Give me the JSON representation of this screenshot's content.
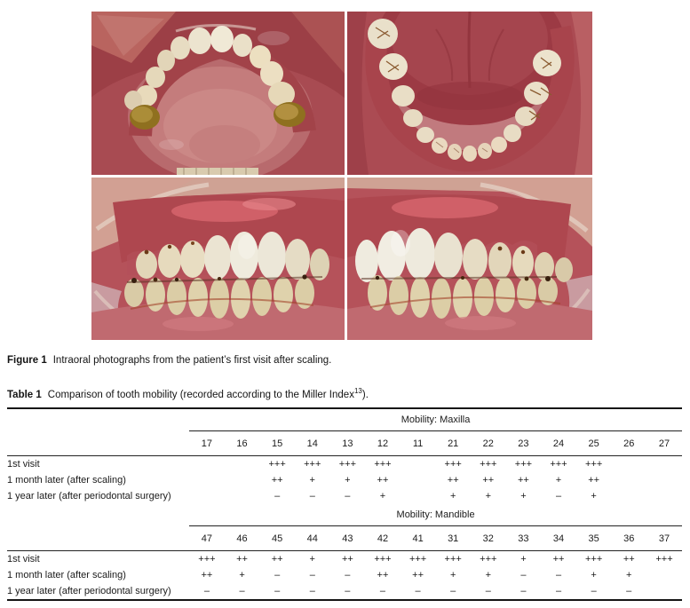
{
  "figure": {
    "caption_label": "Figure 1",
    "caption_text": "Intraoral photographs from the patient’s first visit after scaling.",
    "photos": [
      {
        "name": "maxillary-occlusal-view"
      },
      {
        "name": "mandibular-occlusal-view"
      },
      {
        "name": "right-lateral-view"
      },
      {
        "name": "left-lateral-view"
      }
    ]
  },
  "table": {
    "caption_label": "Table 1",
    "caption_text": "Comparison of tooth mobility (recorded according to the Miller Index",
    "caption_sup": "13",
    "caption_tail": ").",
    "sections": [
      {
        "header": "Mobility: Maxilla",
        "teeth": [
          "17",
          "16",
          "15",
          "14",
          "13",
          "12",
          "11",
          "21",
          "22",
          "23",
          "24",
          "25",
          "26",
          "27"
        ],
        "rows": [
          {
            "label": "1st visit",
            "values": [
              "",
              "",
              "+++",
              "+++",
              "+++",
              "+++",
              "",
              "+++",
              "+++",
              "+++",
              "+++",
              "+++",
              "",
              ""
            ]
          },
          {
            "label": "1 month later (after scaling)",
            "values": [
              "",
              "",
              "++",
              "+",
              "+",
              "++",
              "",
              "++",
              "++",
              "++",
              "+",
              "++",
              "",
              ""
            ]
          },
          {
            "label": "1 year later (after periodontal surgery)",
            "values": [
              "",
              "",
              "–",
              "–",
              "–",
              "+",
              "",
              "+",
              "+",
              "+",
              "–",
              "+",
              "",
              ""
            ]
          }
        ]
      },
      {
        "header": "Mobility: Mandible",
        "teeth": [
          "47",
          "46",
          "45",
          "44",
          "43",
          "42",
          "41",
          "31",
          "32",
          "33",
          "34",
          "35",
          "36",
          "37"
        ],
        "rows": [
          {
            "label": "1st visit",
            "values": [
              "+++",
              "++",
              "++",
              "+",
              "++",
              "+++",
              "+++",
              "+++",
              "+++",
              "+",
              "++",
              "+++",
              "++",
              "+++"
            ]
          },
          {
            "label": "1 month later (after scaling)",
            "values": [
              "++",
              "+",
              "–",
              "–",
              "–",
              "++",
              "++",
              "+",
              "+",
              "–",
              "–",
              "+",
              "+",
              ""
            ]
          },
          {
            "label": "1 year later (after periodontal surgery)",
            "values": [
              "–",
              "–",
              "–",
              "–",
              "–",
              "–",
              "–",
              "–",
              "–",
              "–",
              "–",
              "–",
              "–",
              ""
            ]
          }
        ]
      }
    ]
  },
  "colors": {
    "gum_dark": "#a1424a",
    "gum_bright": "#c0525a",
    "palate": "#c77e7e",
    "tooth_cream": "#eae0c8",
    "tooth_white": "#f0ece0",
    "tooth_yellow": "#dccfa8",
    "gold_crown": "#97752a",
    "tongue": "#9c3942",
    "flesh": "#d4a497"
  }
}
